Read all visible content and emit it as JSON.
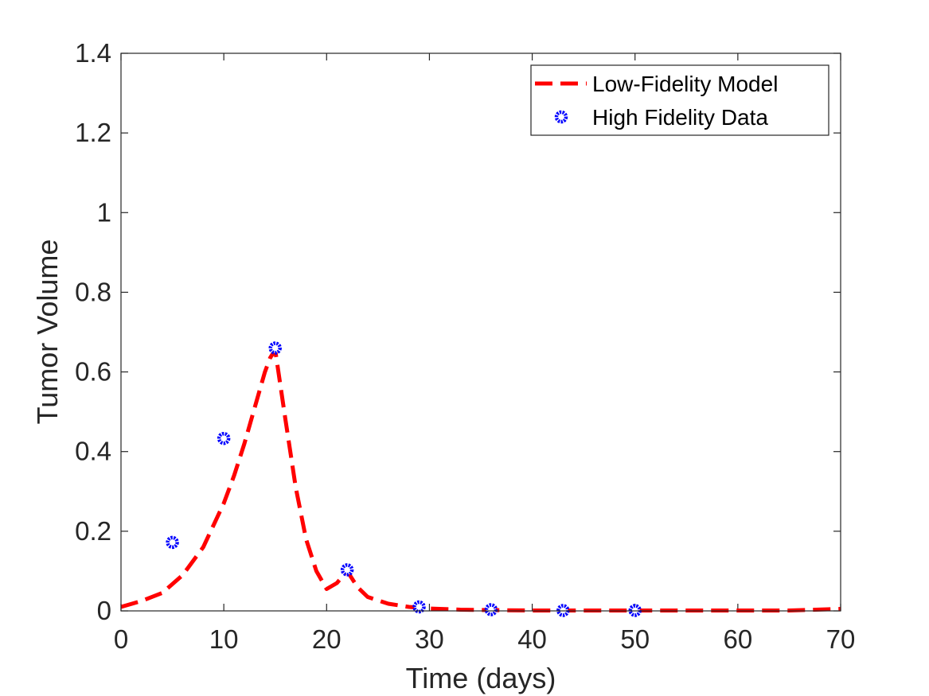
{
  "chart_data": {
    "type": "line",
    "title": "",
    "xlabel": "Time (days)",
    "ylabel": "Tumor Volume",
    "xlim": [
      0,
      70
    ],
    "ylim": [
      0,
      1.4
    ],
    "xticks": [
      0,
      10,
      20,
      30,
      40,
      50,
      60,
      70
    ],
    "xtick_labels": [
      "0",
      "10",
      "20",
      "30",
      "40",
      "50",
      "60",
      "70"
    ],
    "yticks": [
      0,
      0.2,
      0.4,
      0.6,
      0.8,
      1,
      1.2,
      1.4
    ],
    "ytick_labels": [
      "0",
      "0.2",
      "0.4",
      "0.6",
      "0.8",
      "1",
      "1.2",
      "1.4"
    ],
    "grid": false,
    "legend_position": "top-right",
    "series": [
      {
        "name": "Low-Fidelity Model",
        "style": "dashed-line",
        "color": "#ff0000",
        "x": [
          0,
          2,
          4,
          6,
          8,
          10,
          11,
          12,
          13,
          14,
          14.5,
          15,
          16,
          17,
          18,
          19,
          20,
          21,
          22,
          23,
          24,
          26,
          28,
          30,
          33,
          36,
          40,
          45,
          50,
          55,
          60,
          65,
          70
        ],
        "y": [
          0.01,
          0.025,
          0.045,
          0.09,
          0.16,
          0.27,
          0.34,
          0.42,
          0.51,
          0.6,
          0.635,
          0.655,
          0.48,
          0.31,
          0.18,
          0.1,
          0.055,
          0.07,
          0.1,
          0.06,
          0.035,
          0.018,
          0.01,
          0.006,
          0.003,
          0.002,
          0.001,
          0.001,
          0.001,
          0.001,
          0.001,
          0.001,
          0.005
        ]
      },
      {
        "name": "High Fidelity Data",
        "style": "markers",
        "color": "#0000ff",
        "x": [
          5,
          10,
          15,
          22,
          29,
          36,
          43,
          50
        ],
        "y": [
          0.172,
          0.433,
          0.66,
          0.103,
          0.01,
          0.003,
          0.001,
          0.001
        ]
      }
    ]
  }
}
